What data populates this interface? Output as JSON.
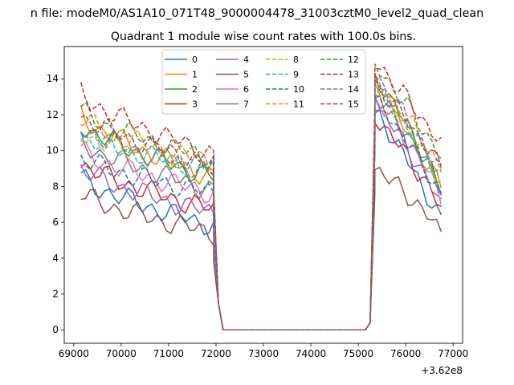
{
  "chart_data": {
    "type": "line",
    "suptitle": "n file: modeM0/AS1A10_071T48_9000004478_31003cztM0_level2_quad_clean",
    "title": "Quadrant 1 module wise count rates with 100.0s bins.",
    "xlabel": "",
    "ylabel": "",
    "x_offset_label": "+3.62e8",
    "xlim": [
      68800,
      77200
    ],
    "ylim": [
      -0.75,
      15.8
    ],
    "x_ticks": [
      69000,
      70000,
      71000,
      72000,
      73000,
      74000,
      75000,
      76000,
      77000
    ],
    "y_ticks": [
      0,
      2,
      4,
      6,
      8,
      10,
      12,
      14
    ],
    "grid": false,
    "legend": {
      "placement": "top-center",
      "columns": 4
    },
    "segments": [
      {
        "x_start": 69150,
        "x_end": 71950,
        "step": 100
      },
      {
        "x_start": 75350,
        "x_end": 76750,
        "step": 100
      }
    ],
    "gap": {
      "x": [
        71950,
        72050,
        72150,
        75150,
        75250,
        75350
      ],
      "y": [
        6.5,
        1.5,
        0,
        0,
        0.4,
        12
      ]
    },
    "series": [
      {
        "name": "0",
        "color": "#1f77b4",
        "dash": "solid",
        "seg1": [
          8.5,
          5.8
        ],
        "seg2": [
          12.0,
          6.0
        ]
      },
      {
        "name": "1",
        "color": "#ff7f0e",
        "dash": "solid",
        "seg1": [
          12.0,
          8.5
        ],
        "seg2": [
          13.2,
          8.0
        ]
      },
      {
        "name": "2",
        "color": "#2ca02c",
        "dash": "solid",
        "seg1": [
          11.5,
          8.5
        ],
        "seg2": [
          14.0,
          7.8
        ]
      },
      {
        "name": "3",
        "color": "#d62728",
        "dash": "solid",
        "seg1": [
          9.3,
          6.7
        ],
        "seg2": [
          11.8,
          6.8
        ]
      },
      {
        "name": "4",
        "color": "#9467bd",
        "dash": "solid",
        "seg1": [
          9.0,
          6.5
        ],
        "seg2": [
          12.5,
          7.0
        ]
      },
      {
        "name": "5",
        "color": "#8c564b",
        "dash": "solid",
        "seg1": [
          7.6,
          5.4
        ],
        "seg2": [
          9.0,
          5.5
        ]
      },
      {
        "name": "6",
        "color": "#e377c2",
        "dash": "solid",
        "seg1": [
          10.0,
          7.6
        ],
        "seg2": [
          12.8,
          7.5
        ]
      },
      {
        "name": "7",
        "color": "#7f7f7f",
        "dash": "solid",
        "seg1": [
          10.5,
          7.8
        ],
        "seg2": [
          13.0,
          8.0
        ]
      },
      {
        "name": "8",
        "color": "#bcbd22",
        "dash": "dashed",
        "seg1": [
          11.0,
          8.8
        ],
        "seg2": [
          13.5,
          8.3
        ]
      },
      {
        "name": "9",
        "color": "#17becf",
        "dash": "dashed",
        "seg1": [
          10.8,
          9.0
        ],
        "seg2": [
          13.3,
          8.6
        ]
      },
      {
        "name": "10",
        "color": "#1f77b4",
        "dash": "dashed",
        "seg1": [
          9.6,
          7.6
        ],
        "seg2": [
          12.7,
          7.5
        ]
      },
      {
        "name": "11",
        "color": "#ff7f0e",
        "dash": "dashed",
        "seg1": [
          11.8,
          9.3
        ],
        "seg2": [
          13.8,
          9.0
        ]
      },
      {
        "name": "12",
        "color": "#2ca02c",
        "dash": "dashed",
        "seg1": [
          12.2,
          9.5
        ],
        "seg2": [
          14.6,
          9.6
        ]
      },
      {
        "name": "13",
        "color": "#d62728",
        "dash": "dashed",
        "seg1": [
          13.2,
          9.8
        ],
        "seg2": [
          14.8,
          10.3
        ]
      },
      {
        "name": "14",
        "color": "#9467bd",
        "dash": "dashed",
        "seg1": [
          11.3,
          8.8
        ],
        "seg2": [
          14.0,
          8.7
        ]
      },
      {
        "name": "15",
        "color": "#8c564b",
        "dash": "dashed",
        "seg1": [
          12.0,
          9.2
        ],
        "seg2": [
          13.6,
          9.0
        ]
      }
    ]
  }
}
